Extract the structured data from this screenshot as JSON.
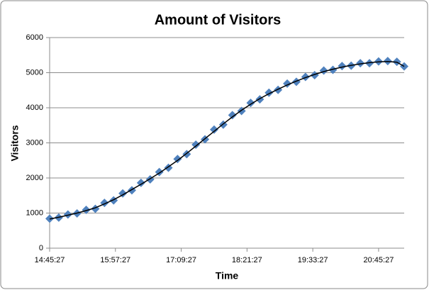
{
  "chart_data": {
    "type": "scatter",
    "title": "Amount of Visitors",
    "x_label": "Time",
    "y_label": "Visitors",
    "x": [
      "14:45:27",
      "14:55:27",
      "15:05:27",
      "15:15:27",
      "15:25:27",
      "15:35:27",
      "15:45:27",
      "15:55:27",
      "16:05:27",
      "16:15:27",
      "16:25:27",
      "16:35:27",
      "16:45:27",
      "16:55:27",
      "17:05:27",
      "17:15:27",
      "17:25:27",
      "17:35:27",
      "17:45:27",
      "17:55:27",
      "18:05:27",
      "18:15:27",
      "18:25:27",
      "18:35:27",
      "18:45:27",
      "18:55:27",
      "19:05:27",
      "19:15:27",
      "19:25:27",
      "19:35:27",
      "19:45:27",
      "19:55:27",
      "20:05:27",
      "20:15:27",
      "20:25:27",
      "20:35:27",
      "20:45:27",
      "20:55:27",
      "21:05:27",
      "21:13:27"
    ],
    "series": [
      {
        "style": "markers",
        "color": "#4f81bd",
        "values": [
          840,
          870,
          960,
          990,
          1090,
          1120,
          1290,
          1360,
          1560,
          1650,
          1860,
          1960,
          2170,
          2290,
          2540,
          2680,
          2950,
          3100,
          3380,
          3520,
          3790,
          3910,
          4140,
          4240,
          4430,
          4510,
          4690,
          4740,
          4880,
          4930,
          5060,
          5080,
          5190,
          5200,
          5270,
          5270,
          5320,
          5330,
          5310,
          5180
        ]
      },
      {
        "style": "line",
        "color": "#000000",
        "values": [
          830,
          880,
          940,
          1000,
          1070,
          1150,
          1260,
          1380,
          1520,
          1670,
          1820,
          1980,
          2140,
          2320,
          2500,
          2700,
          2910,
          3120,
          3330,
          3540,
          3740,
          3930,
          4100,
          4260,
          4400,
          4530,
          4650,
          4760,
          4860,
          4950,
          5030,
          5100,
          5160,
          5210,
          5250,
          5285,
          5310,
          5320,
          5300,
          5180
        ]
      }
    ],
    "xlim": [
      "14:45:27",
      "21:13:27"
    ],
    "xticks": [
      "14:45:27",
      "15:57:27",
      "17:09:27",
      "18:21:27",
      "19:33:27",
      "20:45:27"
    ],
    "ylim": [
      0,
      6000
    ],
    "yticks": [
      0,
      1000,
      2000,
      3000,
      4000,
      5000,
      6000
    ],
    "grid": true
  }
}
